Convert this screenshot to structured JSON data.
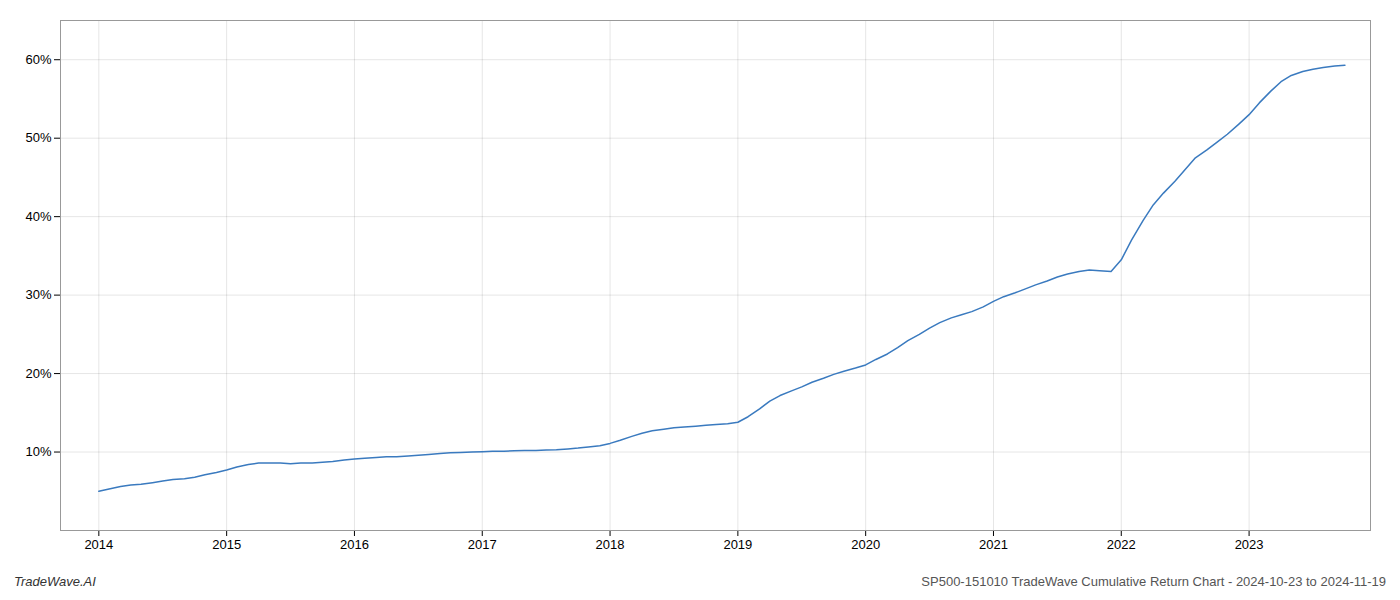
{
  "chart_data": {
    "type": "line",
    "annotations": [
      "TradeWave.AI",
      "SP500-151010 TradeWave Cumulative Return Chart - 2024-10-23 to 2024-11-19"
    ],
    "color": "#3a7abf",
    "grid": true,
    "x": [
      2014.0,
      2014.08,
      2014.17,
      2014.25,
      2014.33,
      2014.42,
      2014.5,
      2014.58,
      2014.67,
      2014.75,
      2014.83,
      2014.92,
      2015.0,
      2015.08,
      2015.17,
      2015.25,
      2015.33,
      2015.42,
      2015.5,
      2015.58,
      2015.67,
      2015.75,
      2015.83,
      2015.92,
      2016.0,
      2016.08,
      2016.17,
      2016.25,
      2016.33,
      2016.42,
      2016.5,
      2016.58,
      2016.67,
      2016.75,
      2016.83,
      2016.92,
      2017.0,
      2017.08,
      2017.17,
      2017.25,
      2017.33,
      2017.42,
      2017.5,
      2017.58,
      2017.67,
      2017.75,
      2017.83,
      2017.92,
      2018.0,
      2018.08,
      2018.17,
      2018.25,
      2018.33,
      2018.42,
      2018.5,
      2018.58,
      2018.67,
      2018.75,
      2018.83,
      2018.92,
      2019.0,
      2019.08,
      2019.17,
      2019.25,
      2019.33,
      2019.42,
      2019.5,
      2019.58,
      2019.67,
      2019.75,
      2019.83,
      2019.92,
      2020.0,
      2020.08,
      2020.17,
      2020.25,
      2020.33,
      2020.42,
      2020.5,
      2020.58,
      2020.67,
      2020.75,
      2020.83,
      2020.92,
      2021.0,
      2021.08,
      2021.17,
      2021.25,
      2021.33,
      2021.42,
      2021.5,
      2021.58,
      2021.67,
      2021.75,
      2021.83,
      2021.92,
      2022.0,
      2022.08,
      2022.17,
      2022.25,
      2022.33,
      2022.42,
      2022.5,
      2022.58,
      2022.67,
      2022.75,
      2022.83,
      2022.92,
      2023.0,
      2023.08,
      2023.17,
      2023.25,
      2023.33,
      2023.42,
      2023.5,
      2023.58,
      2023.67,
      2023.75
    ],
    "values": [
      5.0,
      5.3,
      5.6,
      5.8,
      5.9,
      6.1,
      6.3,
      6.5,
      6.6,
      6.8,
      7.1,
      7.4,
      7.7,
      8.1,
      8.4,
      8.6,
      8.6,
      8.6,
      8.5,
      8.6,
      8.6,
      8.7,
      8.8,
      9.0,
      9.1,
      9.2,
      9.3,
      9.4,
      9.4,
      9.5,
      9.6,
      9.7,
      9.8,
      9.9,
      9.95,
      10.0,
      10.05,
      10.1,
      10.1,
      10.15,
      10.2,
      10.2,
      10.25,
      10.3,
      10.4,
      10.5,
      10.65,
      10.8,
      11.1,
      11.5,
      12.0,
      12.4,
      12.7,
      12.9,
      13.1,
      13.2,
      13.3,
      13.4,
      13.5,
      13.6,
      13.8,
      14.5,
      15.5,
      16.5,
      17.2,
      17.8,
      18.3,
      18.9,
      19.4,
      19.9,
      20.3,
      20.7,
      21.1,
      21.8,
      22.5,
      23.3,
      24.2,
      25.0,
      25.8,
      26.5,
      27.1,
      27.5,
      27.9,
      28.5,
      29.2,
      29.8,
      30.3,
      30.8,
      31.3,
      31.8,
      32.3,
      32.7,
      33.0,
      33.2,
      33.1,
      33.0,
      34.5,
      37.0,
      39.5,
      41.5,
      43.0,
      44.5,
      46.0,
      47.5,
      48.5,
      49.5,
      50.5,
      51.8,
      53.0,
      54.5,
      56.0,
      57.2,
      58.0,
      58.5,
      58.8,
      59.0,
      59.2,
      59.3
    ],
    "xlim": [
      2013.7,
      2023.95
    ],
    "ylim": [
      0,
      65
    ],
    "xticks": [
      2014,
      2015,
      2016,
      2017,
      2018,
      2019,
      2020,
      2021,
      2022,
      2023
    ],
    "yticks": [
      {
        "value": 10,
        "label": "10%"
      },
      {
        "value": 20,
        "label": "20%"
      },
      {
        "value": 30,
        "label": "30%"
      },
      {
        "value": 40,
        "label": "40%"
      },
      {
        "value": 50,
        "label": "50%"
      },
      {
        "value": 60,
        "label": "60%"
      }
    ]
  }
}
